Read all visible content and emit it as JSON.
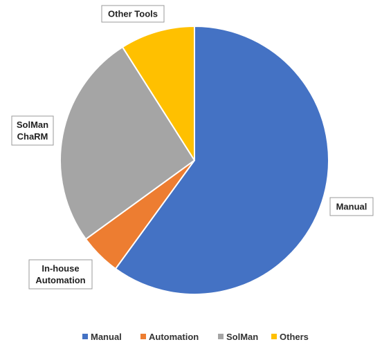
{
  "chart_data": {
    "type": "pie",
    "slices": [
      {
        "key": "manual",
        "label": "Manual",
        "value": 60,
        "color": "#4472C4"
      },
      {
        "key": "automation",
        "label": "Automation",
        "value": 5,
        "color": "#ED7D31"
      },
      {
        "key": "solman",
        "label": "SolMan",
        "value": 26,
        "color": "#A5A5A5"
      },
      {
        "key": "others",
        "label": "Others",
        "value": 9,
        "color": "#FFC000"
      }
    ],
    "annotations": {
      "manual": [
        "Manual"
      ],
      "automation": [
        "In-house",
        "Automation"
      ],
      "solman": [
        "SolMan",
        "ChaRM"
      ],
      "others": [
        "Other Tools"
      ]
    },
    "legend_position": "bottom",
    "start_angle_deg": 0,
    "direction": "clockwise"
  }
}
